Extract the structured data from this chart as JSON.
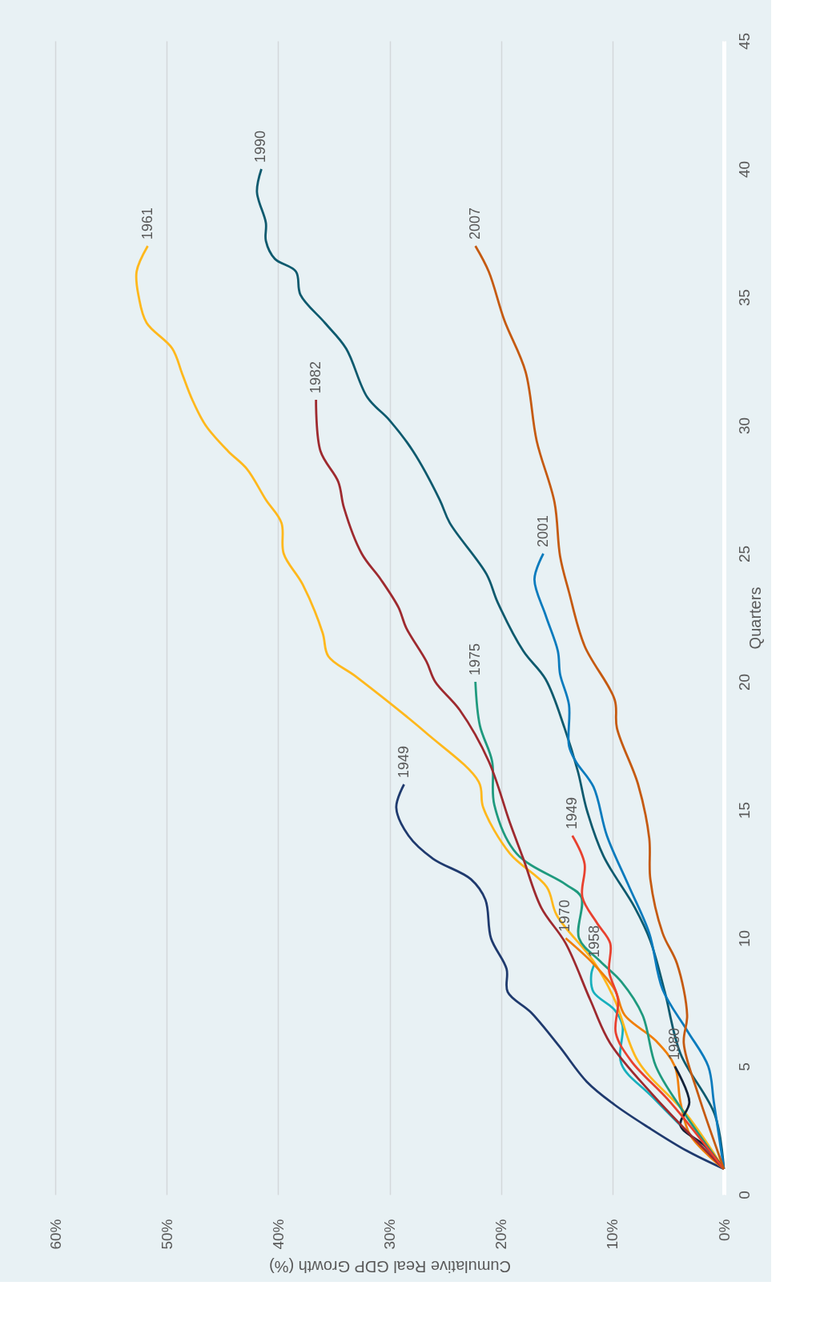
{
  "chart_data": {
    "type": "line",
    "xlabel": "Cumulative Real GDP Growth (%)",
    "ylabel": "Quarters",
    "xlim": [
      60,
      0
    ],
    "xticks": [
      {
        "value": 60,
        "label": "60%"
      },
      {
        "value": 50,
        "label": "50%"
      },
      {
        "value": 40,
        "label": "40%"
      },
      {
        "value": 30,
        "label": "30%"
      },
      {
        "value": 20,
        "label": "20%"
      },
      {
        "value": 10,
        "label": "10%"
      },
      {
        "value": 0,
        "label": "0%"
      }
    ],
    "ylim": [
      0,
      45
    ],
    "yticks": [
      0,
      5,
      10,
      15,
      20,
      25,
      30,
      35,
      40,
      45
    ],
    "grid": "x",
    "legend": false,
    "marker": "none",
    "line_style": "solid",
    "series": [
      {
        "name": "1949",
        "color": "#1f3a6e",
        "values": [
          1,
          1.7,
          2.6,
          3.5,
          4.4,
          5.8,
          7.1,
          7.9,
          8.8,
          10,
          11.5,
          12.3,
          13.1,
          14,
          15.1,
          16
        ],
        "x": [
          0,
          3.3,
          6.7,
          9.8,
          12.3,
          14.8,
          17.3,
          19.4,
          19.5,
          20.9,
          21.4,
          22.7,
          26.1,
          28.3,
          29.4,
          28.7
        ]
      },
      {
        "name": "1958",
        "color": "#17b0bd",
        "values": [
          1,
          3.8,
          5.1,
          6.6,
          7.2,
          7.9,
          8.6,
          9
        ],
        "x": [
          0,
          6.4,
          9.2,
          9.1,
          9.8,
          11.7,
          11.9,
          11.6
        ]
      },
      {
        "name": "1961",
        "color": "#ffb81c",
        "values": [
          1,
          3.1,
          5.2,
          7.6,
          9.1,
          10.9,
          12,
          13.3,
          15.1,
          16.1,
          18,
          20.2,
          21,
          21.9,
          23.8,
          25,
          26.2,
          27.1,
          28.3,
          29,
          30,
          31,
          32,
          33,
          34,
          35,
          36,
          37
        ],
        "x": [
          0,
          3.3,
          7.7,
          9.8,
          11.7,
          15,
          15.9,
          19.2,
          21.6,
          22,
          26.7,
          33,
          35.5,
          36,
          37.8,
          39.5,
          39.7,
          41.1,
          42.8,
          44.5,
          46.5,
          47.7,
          48.6,
          49.5,
          51.8,
          52.5,
          52.7,
          51.7
        ]
      },
      {
        "name": "1970",
        "color": "#f07f09",
        "values": [
          1,
          2.3,
          3.6,
          5,
          6,
          7,
          8,
          9,
          10
        ],
        "x": [
          0,
          3,
          3.9,
          4.4,
          6.1,
          8.9,
          9.8,
          11.7,
          14.2
        ]
      },
      {
        "name": "1975",
        "color": "#1f9a7e",
        "values": [
          1,
          3.4,
          5,
          7,
          8.3,
          9.1,
          10,
          11.6,
          12.1,
          13.3,
          15.2,
          16.9,
          18.3,
          20
        ],
        "x": [
          0,
          3.9,
          6.1,
          7.3,
          9.2,
          11.1,
          13,
          12.8,
          14.2,
          18.6,
          20.6,
          20.8,
          21.9,
          22.3
        ]
      },
      {
        "name": "1980",
        "color": "#13233a",
        "values": [
          1,
          1.9,
          2.7,
          3.6,
          5
        ],
        "x": [
          0,
          1.7,
          3.9,
          3.1,
          4.4
        ]
      },
      {
        "name": "1982",
        "color": "#9e2a2f",
        "values": [
          1,
          3.9,
          5.9,
          7.6,
          9.8,
          11.2,
          13.1,
          14.5,
          16.9,
          18.9,
          20,
          20.8,
          22.1,
          22.9,
          24,
          25,
          26.8,
          27.8,
          29,
          31
        ],
        "x": [
          0,
          6.4,
          10.2,
          12,
          14.2,
          16.4,
          18,
          19.2,
          21.1,
          23.7,
          25.9,
          26.7,
          28.5,
          29.2,
          30.8,
          32.5,
          34.1,
          34.6,
          36.2,
          36.6
        ]
      },
      {
        "name": "1990",
        "color": "#0e5a6e",
        "values": [
          1,
          3.1,
          5.5,
          7.9,
          9.9,
          11.2,
          13.2,
          15,
          16.5,
          18.2,
          20.1,
          21.2,
          23.1,
          24.2,
          26.2,
          27.1,
          29,
          30.2,
          31.1,
          33,
          34,
          35.1,
          36,
          36.5,
          37.2,
          37.9,
          39.1,
          40
        ],
        "x": [
          0,
          0.8,
          3.9,
          5.3,
          6.6,
          8,
          10.8,
          12.3,
          13.1,
          14.3,
          16,
          18,
          20.3,
          21.3,
          24.6,
          25.5,
          27.9,
          30,
          32,
          33.9,
          35.8,
          38,
          38.4,
          40.3,
          41.1,
          41.1,
          41.9,
          41.5
        ]
      },
      {
        "name": "2001",
        "color": "#0a7bbd",
        "values": [
          1,
          3.6,
          5,
          6.4,
          8,
          10.2,
          12.1,
          14,
          15.9,
          16.9,
          17.5,
          19.1,
          20.3,
          21.2,
          22.6,
          24,
          25
        ],
        "x": [
          0,
          0.9,
          1.4,
          3.3,
          5.5,
          6.7,
          8.6,
          10.5,
          11.7,
          13.3,
          13.9,
          13.9,
          14.7,
          14.9,
          16,
          17,
          16.2
        ]
      },
      {
        "name": "1949",
        "color": "#e8412f",
        "values": [
          1,
          3.6,
          5.2,
          6.3,
          7.6,
          8.7,
          9.8,
          10.6,
          11.6,
          12.9,
          14
        ],
        "x": [
          0,
          4.8,
          8.3,
          9.7,
          9.5,
          10.3,
          10.2,
          11.4,
          12.7,
          12.5,
          13.6
        ]
      },
      {
        "name": "2007",
        "color": "#c55a11",
        "values": [
          1,
          3.9,
          5.9,
          7,
          9,
          10.2,
          12.3,
          13.9,
          16,
          18.2,
          19.3,
          21.4,
          23.5,
          24.9,
          27,
          29.4,
          32.1,
          34.1,
          36,
          37
        ],
        "x": [
          0,
          2.3,
          3.6,
          3.3,
          4.2,
          5.5,
          6.6,
          6.7,
          7.7,
          9.6,
          9.8,
          12.5,
          13.9,
          14.7,
          15.2,
          16.8,
          17.8,
          19.7,
          21.1,
          22.3
        ]
      }
    ]
  }
}
